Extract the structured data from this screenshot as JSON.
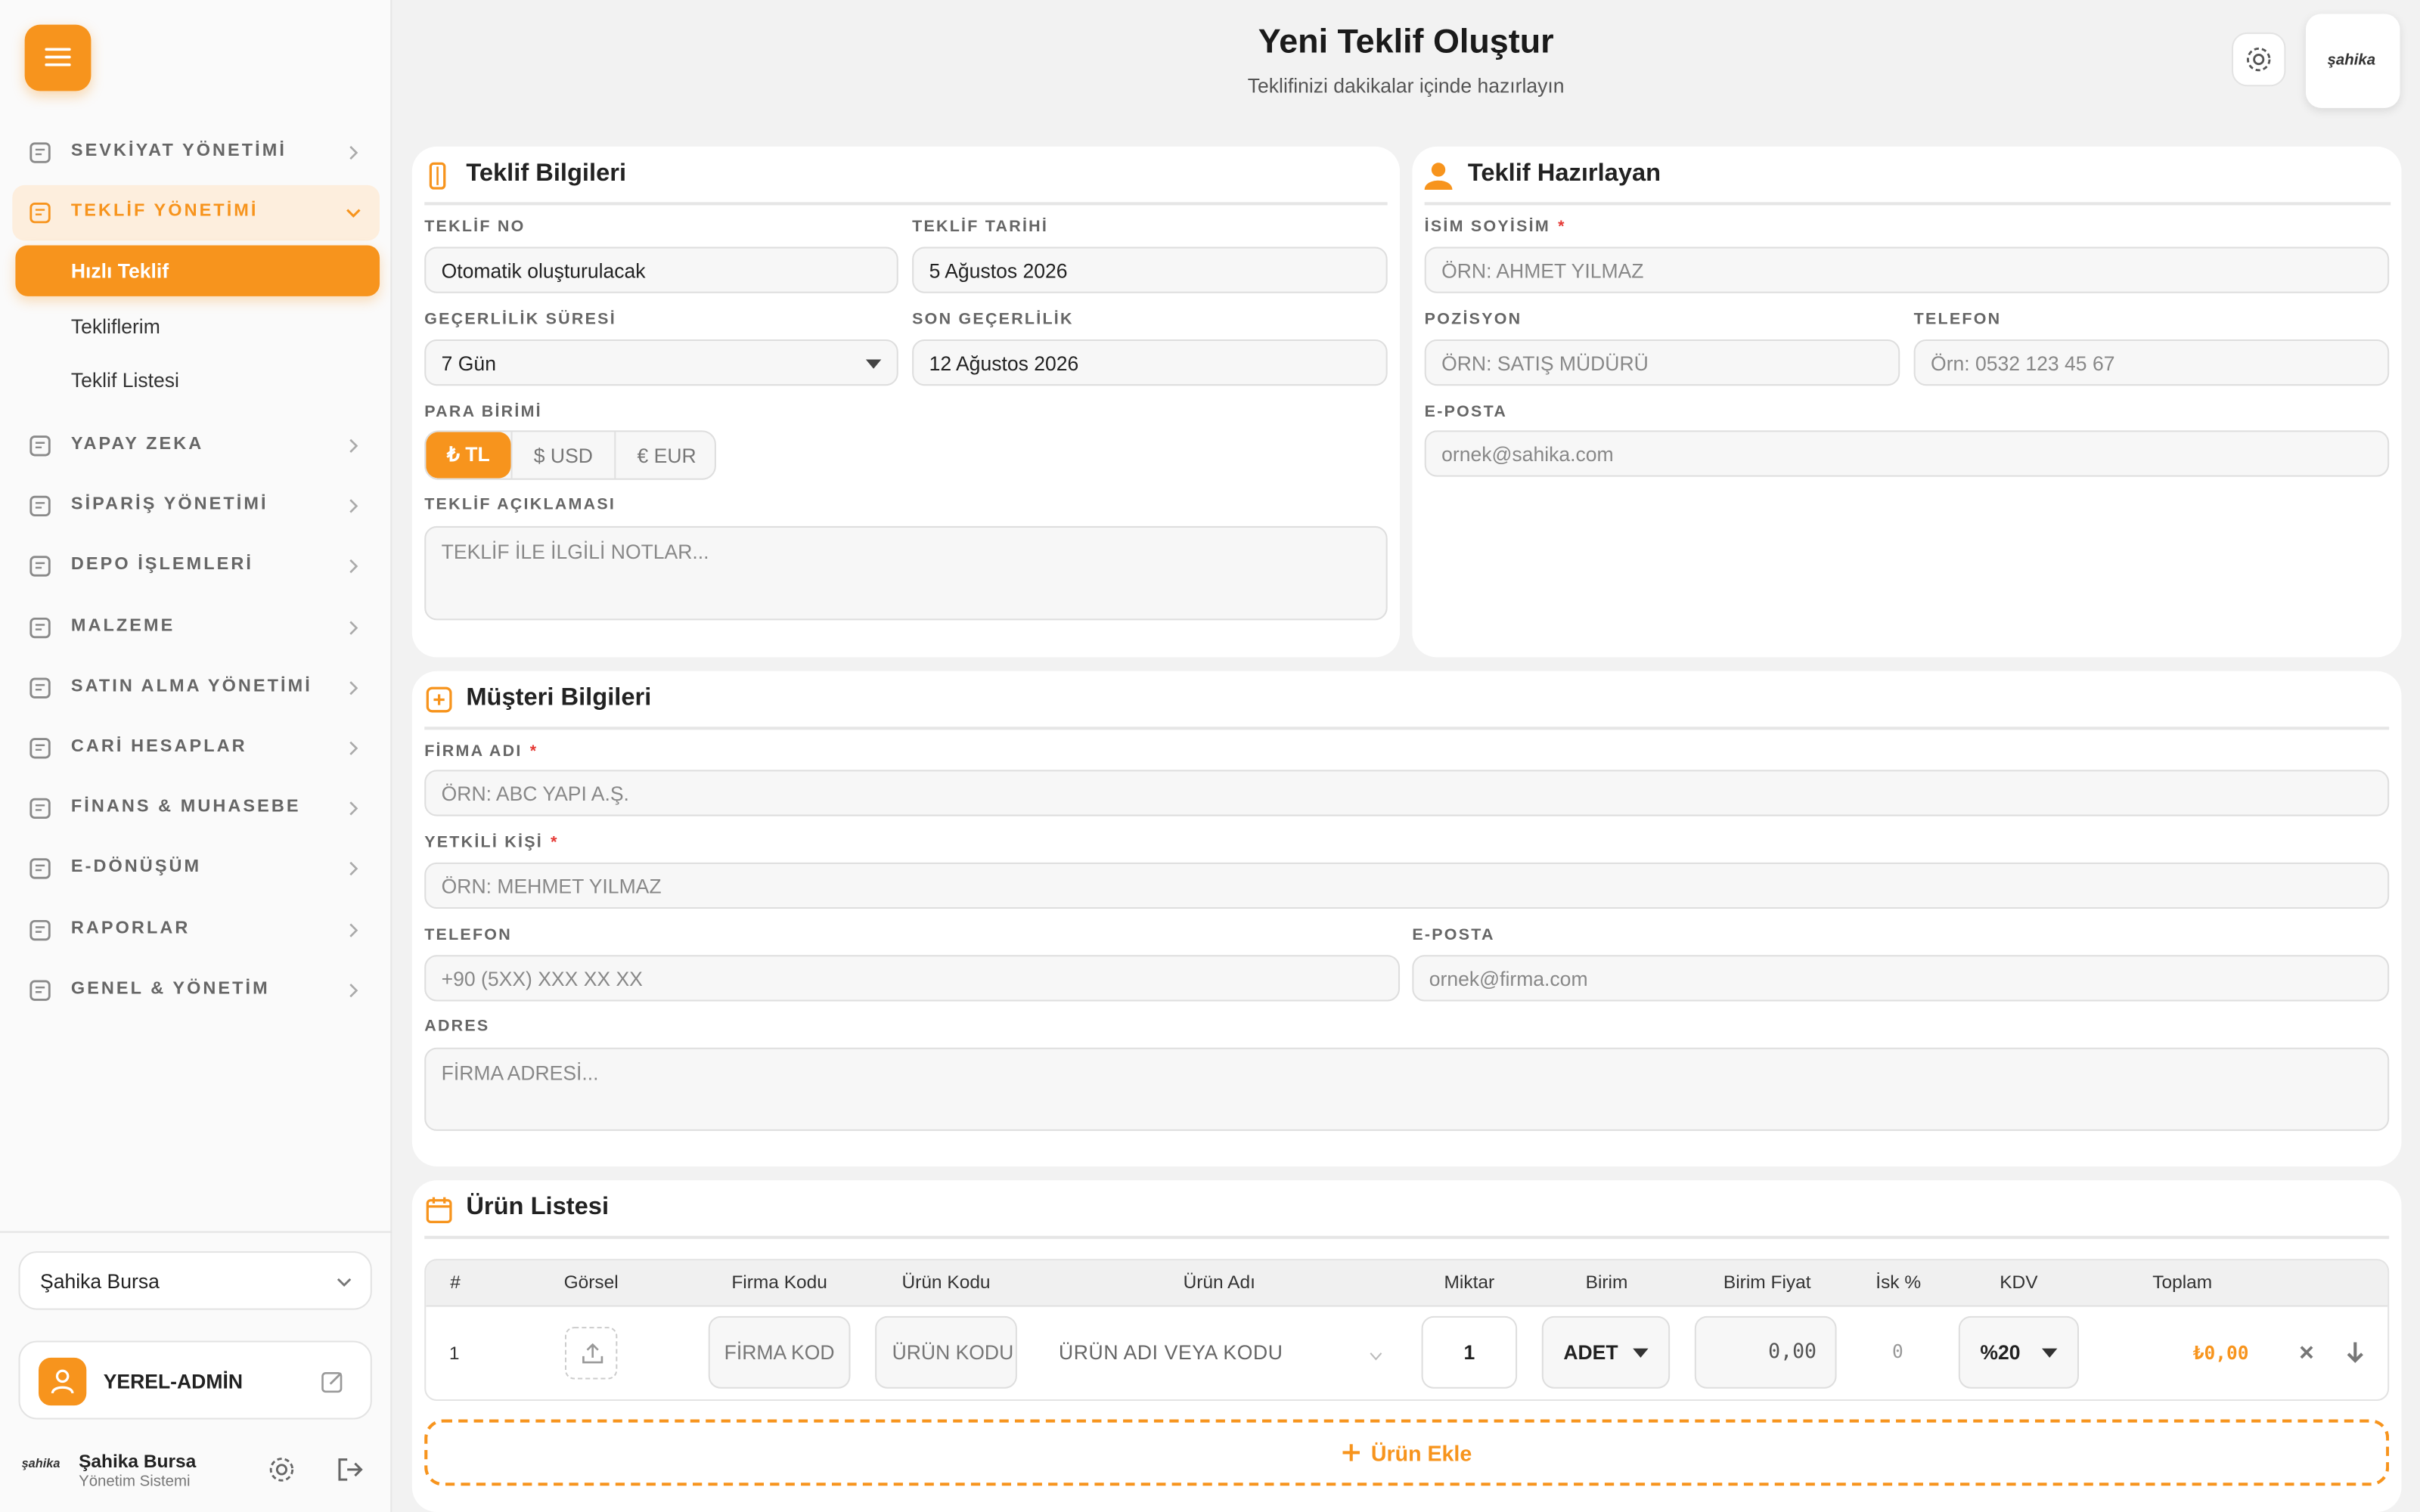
{
  "sidebar": {
    "menu": [
      "SEVKİYAT YÖNETİMİ",
      "TEKLİF YÖNETİMİ",
      "YAPAY ZEKA",
      "SİPARİŞ YÖNETİMİ",
      "DEPO İŞLEMLERİ",
      "MALZEME",
      "SATIN ALMA YÖNETİMİ",
      "CARİ HESAPLAR",
      "FİNANS & MUHASEBE",
      "E-DÖNÜŞÜM",
      "RAPORLAR",
      "GENEL & YÖNETİM"
    ],
    "submenu": [
      "Hızlı Teklif",
      "Tekliflerim",
      "Teklif Listesi"
    ],
    "branch": "Şahika Bursa",
    "user": "YEREL-ADMİN",
    "footer_name": "Şahika Bursa",
    "footer_subtitle": "Yönetim Sistemi"
  },
  "header": {
    "title": "Yeni Teklif Oluştur",
    "subtitle": "Teklifinizi dakikalar içinde hazırlayın",
    "logo": "şahika"
  },
  "required_mark": "*",
  "teklif_bilgileri": {
    "title": "Teklif Bilgileri",
    "fields": [
      {
        "label": "TEKLİF NO",
        "value": "Otomatik oluşturulacak"
      },
      {
        "label": "TEKLİF TARİHİ",
        "value": "5 Ağustos 2026"
      },
      {
        "label": "GEÇERLİLİK SÜRESİ",
        "value": "7 Gün"
      },
      {
        "label": "SON GEÇERLİLİK",
        "value": "12 Ağustos 2026"
      }
    ],
    "currency_label": "PARA BİRİMİ",
    "currencies": [
      "₺ TL",
      "$ USD",
      "€ EUR"
    ],
    "description_label": "TEKLİF AÇIKLAMASI",
    "description_placeholder": "TEKLİF İLE İLGİLİ NOTLAR..."
  },
  "teklif_hazirlayan": {
    "title": "Teklif Hazırlayan",
    "fields": [
      {
        "label": "İSİM SOYİSİM",
        "placeholder": "ÖRN: AHMET YILMAZ",
        "required": true
      },
      {
        "label": "POZİSYON",
        "placeholder": "ÖRN: SATIŞ MÜDÜRÜ"
      },
      {
        "label": "TELEFON",
        "placeholder": "Örn: 0532 123 45 67"
      },
      {
        "label": "E-POSTA",
        "placeholder": "ornek@sahika.com"
      }
    ]
  },
  "musteri_bilgileri": {
    "title": "Müşteri Bilgileri",
    "fields": [
      {
        "label": "FİRMA ADI",
        "placeholder": "ÖRN: ABC YAPI A.Ş.",
        "required": true
      },
      {
        "label": "YETKİLİ KİŞİ",
        "placeholder": "ÖRN: MEHMET YILMAZ",
        "required": true
      },
      {
        "label": "TELEFON",
        "placeholder": "+90 (5XX) XXX XX XX"
      },
      {
        "label": "E-POSTA",
        "placeholder": "ornek@firma.com"
      },
      {
        "label": "ADRES",
        "placeholder": "FİRMA ADRESİ..."
      }
    ]
  },
  "urun_listesi": {
    "title": "Ürün Listesi",
    "columns": [
      "#",
      "Görsel",
      "Firma Kodu",
      "Ürün Kodu",
      "Ürün Adı",
      "Miktar",
      "Birim",
      "Birim Fiyat",
      "İsk %",
      "KDV",
      "Toplam"
    ],
    "rows": [
      {
        "no": "1",
        "firma_kodu": "FİRMA KOD",
        "urun_kodu": "ÜRÜN KODU",
        "urun_adi": "ÜRÜN ADI VEYA KODU",
        "miktar": "1",
        "birim": "ADET",
        "birim_fiyat": "0,00",
        "iskonto": "0",
        "kdv": "%20",
        "toplam": "₺0,00"
      }
    ],
    "add_button": "Ürün Ekle"
  }
}
